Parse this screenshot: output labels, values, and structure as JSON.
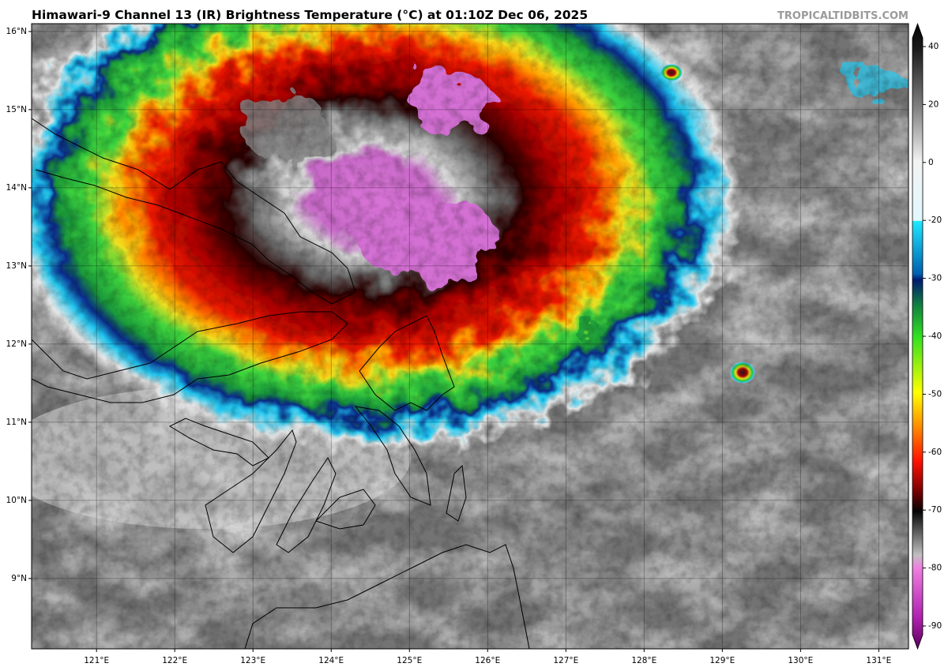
{
  "header": {
    "title": "Himawari-9 Channel 13 (IR) Brightness Temperature (°C) at 01:10Z Dec 06, 2025",
    "watermark": "TROPICALTIDBITS.COM"
  },
  "map": {
    "lon_range": [
      120.17,
      131.38
    ],
    "lat_range": [
      8.1,
      16.1
    ],
    "lat_ticks": [
      {
        "value": 16,
        "label": "16°N"
      },
      {
        "value": 15,
        "label": "15°N"
      },
      {
        "value": 14,
        "label": "14°N"
      },
      {
        "value": 13,
        "label": "13°N"
      },
      {
        "value": 12,
        "label": "12°N"
      },
      {
        "value": 11,
        "label": "11°N"
      },
      {
        "value": 10,
        "label": "10°N"
      },
      {
        "value": 9,
        "label": "9°N"
      }
    ],
    "lon_ticks": [
      {
        "value": 121,
        "label": "121°E"
      },
      {
        "value": 122,
        "label": "122°E"
      },
      {
        "value": 123,
        "label": "123°E"
      },
      {
        "value": 124,
        "label": "124°E"
      },
      {
        "value": 125,
        "label": "125°E"
      },
      {
        "value": 126,
        "label": "126°E"
      },
      {
        "value": 127,
        "label": "127°E"
      },
      {
        "value": 128,
        "label": "128°E"
      },
      {
        "value": 129,
        "label": "129°E"
      },
      {
        "value": 130,
        "label": "130°E"
      },
      {
        "value": 131,
        "label": "131°E"
      }
    ]
  },
  "colorbar": {
    "ticks": [
      40,
      20,
      0,
      -20,
      -30,
      -40,
      -50,
      -60,
      -70,
      -80,
      -90
    ]
  }
}
